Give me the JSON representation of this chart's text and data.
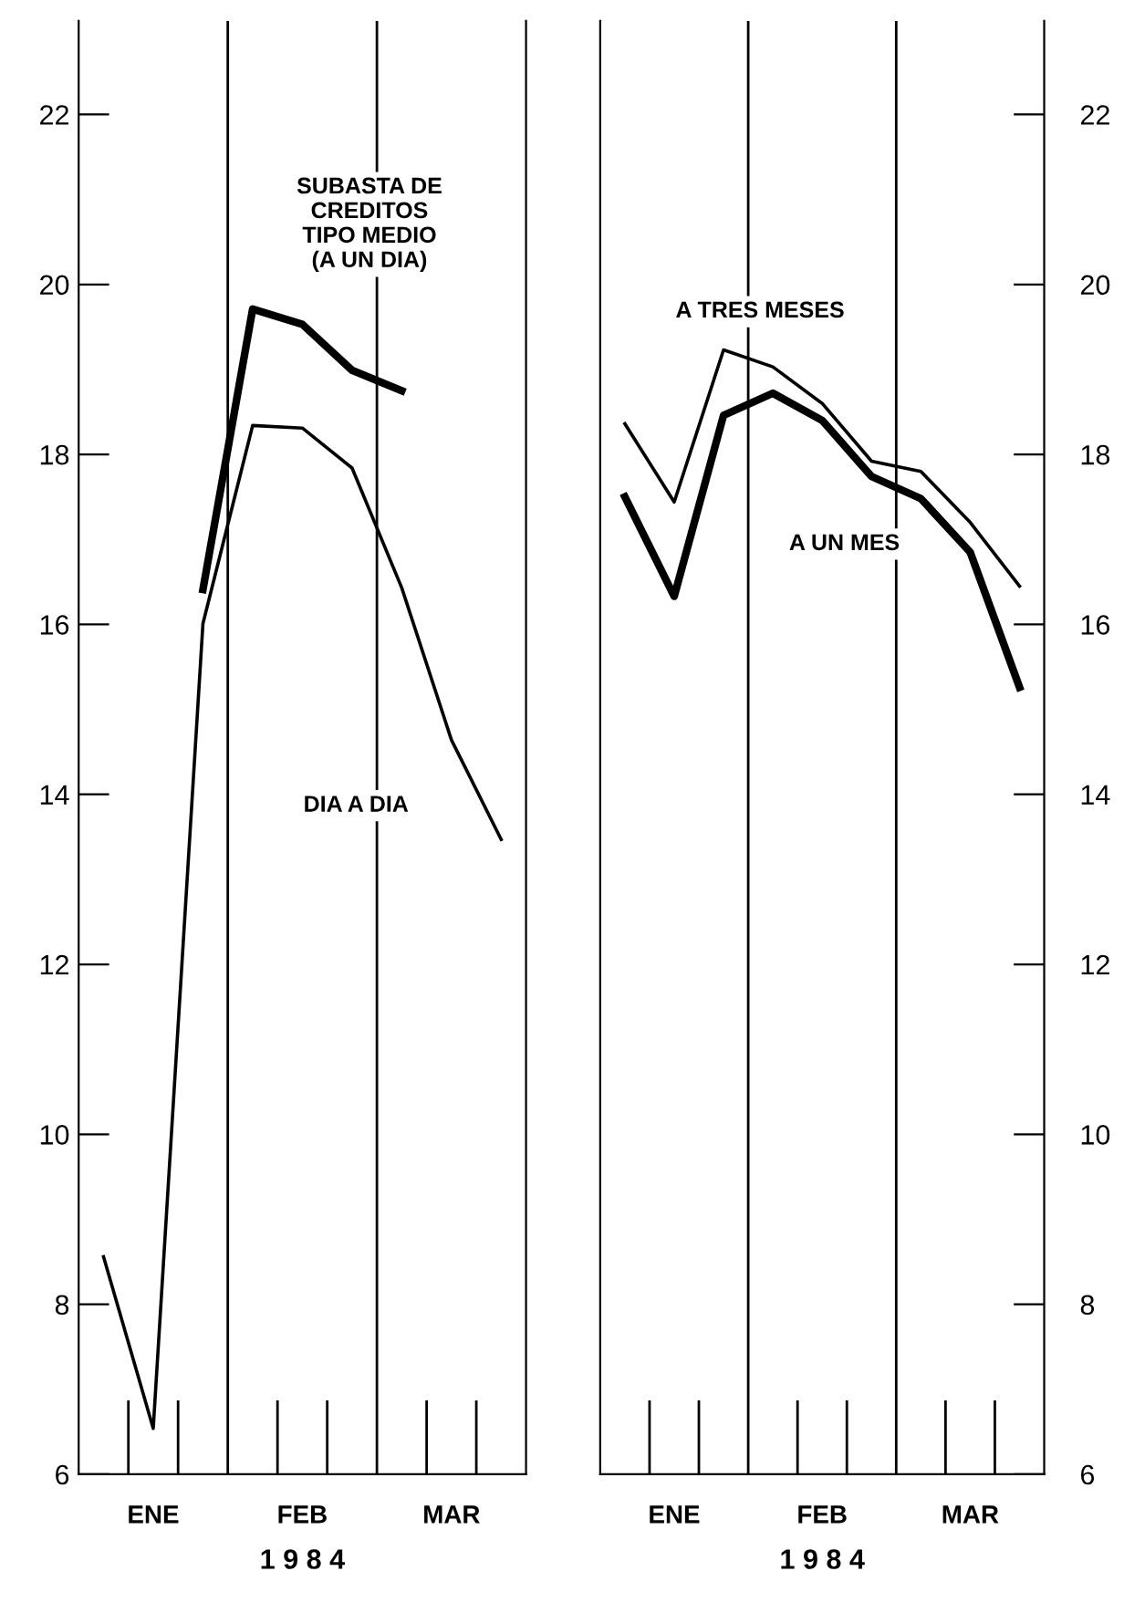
{
  "chart_data": [
    {
      "type": "line",
      "xlabel": "1 9 8 4",
      "categories": [
        null,
        "ENE",
        null,
        null,
        "FEB",
        null,
        null,
        "MAR",
        null
      ],
      "ylim": [
        6,
        23.1
      ],
      "yticks": [
        6,
        8,
        10,
        12,
        14,
        16,
        18,
        20,
        22
      ],
      "series": [
        {
          "color": "#000000",
          "values": [
            8.56,
            6.54,
            16.01,
            18.34,
            18.31,
            17.84,
            16.43,
            14.64,
            13.47
          ]
        },
        {
          "color": "#000000",
          "values": [
            null,
            null,
            16.41,
            19.71,
            19.53,
            18.99,
            18.75,
            null,
            null
          ]
        }
      ],
      "annotations": [
        "SUBASTA DE\nCREDITOS\nTIPO MEDIO\n(A UN DIA)",
        "DIA A DIA"
      ],
      "grid": false,
      "legend": false
    },
    {
      "type": "line",
      "xlabel": "1 9 8 4",
      "categories": [
        null,
        "ENE",
        null,
        null,
        "FEB",
        null,
        null,
        "MAR",
        null
      ],
      "ylim": [
        6,
        23.1
      ],
      "yticks": [
        6,
        8,
        10,
        12,
        14,
        16,
        18,
        20,
        22
      ],
      "series": [
        {
          "color": "#000000",
          "values": [
            18.36,
            17.44,
            19.23,
            19.03,
            18.6,
            17.92,
            17.8,
            17.2,
            16.45
          ]
        },
        {
          "color": "#000000",
          "values": [
            17.5,
            16.33,
            18.46,
            18.72,
            18.4,
            17.74,
            17.48,
            16.85,
            15.26
          ]
        }
      ],
      "annotations": [
        "A TRES MESES",
        "A UN MES"
      ],
      "grid": false,
      "legend": false
    }
  ]
}
